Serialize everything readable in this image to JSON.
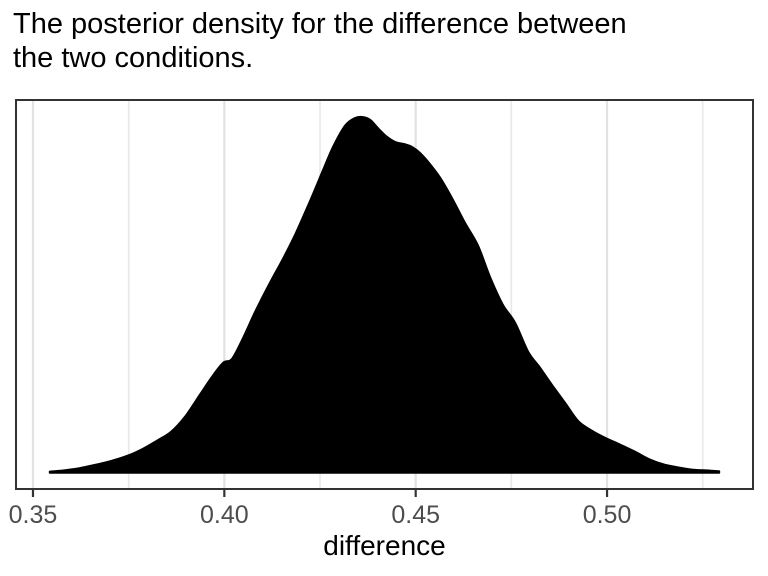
{
  "title": {
    "lines": [
      "The posterior density for the difference between",
      "the two conditions."
    ]
  },
  "x_axis": {
    "label": "difference",
    "tick_labels": [
      "0.35",
      "0.40",
      "0.45",
      "0.50"
    ],
    "tick_values": [
      0.35,
      0.4,
      0.45,
      0.5
    ],
    "minor_tick_values": [
      0.375,
      0.425,
      0.475,
      0.525
    ]
  },
  "colors": {
    "density_fill": "#000000",
    "panel_border": "#333333",
    "grid_major": "#e2e2e2",
    "grid_minor": "#e8e8e8",
    "tick_label": "#4d4d4d",
    "background": "#ffffff"
  },
  "chart_data": {
    "type": "area",
    "title": "The posterior density for the difference between the two conditions.",
    "xlabel": "difference",
    "ylabel": "",
    "y_axis_shown": false,
    "density_units": "relative density (peak = 1.0)",
    "x_range_panel": [
      0.3453,
      0.5384
    ],
    "x_data_range": [
      0.3544,
      0.5293
    ],
    "peak_x": 0.436,
    "shoulder_x": 0.447,
    "grid": "vertical only",
    "legend": "none",
    "points": [
      [
        0.3544,
        0.003
      ],
      [
        0.3584,
        0.007
      ],
      [
        0.3623,
        0.013
      ],
      [
        0.3662,
        0.022
      ],
      [
        0.3701,
        0.032
      ],
      [
        0.3748,
        0.048
      ],
      [
        0.3787,
        0.067
      ],
      [
        0.3824,
        0.09
      ],
      [
        0.3861,
        0.115
      ],
      [
        0.3897,
        0.157
      ],
      [
        0.3936,
        0.219
      ],
      [
        0.3968,
        0.27
      ],
      [
        0.3997,
        0.309
      ],
      [
        0.402,
        0.32
      ],
      [
        0.4049,
        0.379
      ],
      [
        0.4083,
        0.458
      ],
      [
        0.4119,
        0.534
      ],
      [
        0.4153,
        0.601
      ],
      [
        0.4187,
        0.674
      ],
      [
        0.4224,
        0.764
      ],
      [
        0.4255,
        0.843
      ],
      [
        0.4284,
        0.916
      ],
      [
        0.4315,
        0.975
      ],
      [
        0.4341,
        0.997
      ],
      [
        0.436,
        1.0
      ],
      [
        0.4381,
        0.992
      ],
      [
        0.4401,
        0.969
      ],
      [
        0.4422,
        0.947
      ],
      [
        0.4446,
        0.93
      ],
      [
        0.4469,
        0.924
      ],
      [
        0.449,
        0.916
      ],
      [
        0.4511,
        0.899
      ],
      [
        0.4537,
        0.868
      ],
      [
        0.4564,
        0.829
      ],
      [
        0.4595,
        0.772
      ],
      [
        0.4629,
        0.702
      ],
      [
        0.4663,
        0.638
      ],
      [
        0.4694,
        0.551
      ],
      [
        0.4728,
        0.472
      ],
      [
        0.476,
        0.421
      ],
      [
        0.4794,
        0.34
      ],
      [
        0.4825,
        0.295
      ],
      [
        0.4856,
        0.247
      ],
      [
        0.489,
        0.197
      ],
      [
        0.4924,
        0.146
      ],
      [
        0.4956,
        0.121
      ],
      [
        0.4995,
        0.098
      ],
      [
        0.5034,
        0.079
      ],
      [
        0.5073,
        0.059
      ],
      [
        0.5112,
        0.037
      ],
      [
        0.5152,
        0.022
      ],
      [
        0.5191,
        0.014
      ],
      [
        0.523,
        0.008
      ],
      [
        0.5269,
        0.006
      ],
      [
        0.5293,
        0.004
      ]
    ]
  }
}
